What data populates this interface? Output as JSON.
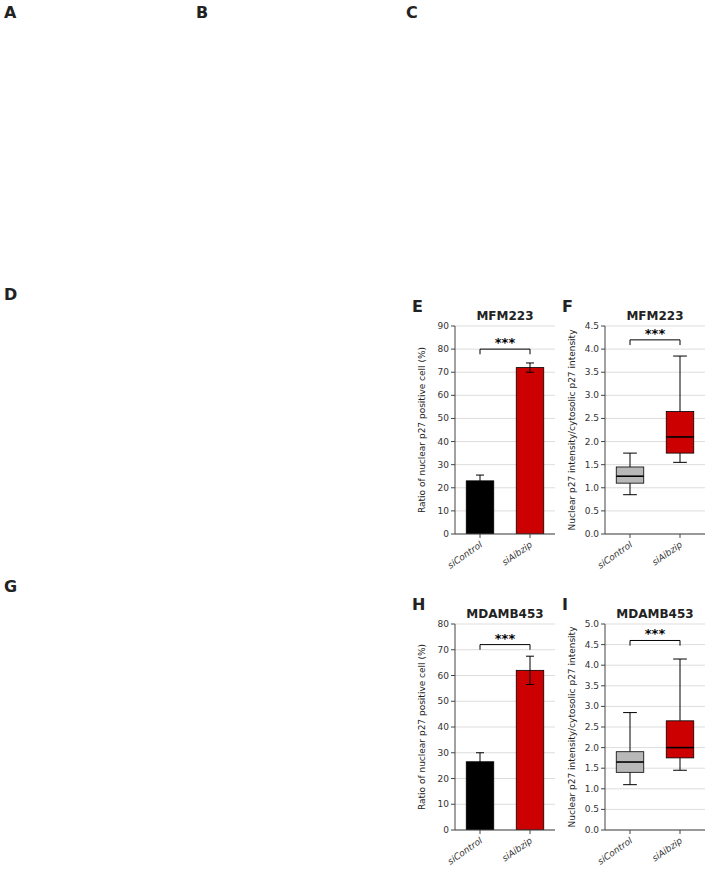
{
  "chart_data": [
    {
      "type": "bar",
      "title": "MFM223",
      "categories": [
        "siControl",
        "siAibzip"
      ],
      "values": [
        23.0,
        72.0
      ],
      "errors": [
        2.5,
        2.0
      ],
      "colors": [
        "#000000",
        "#cc0000"
      ],
      "y_label": "Ratio of nuclear p27 positive cell (%)",
      "ylim": [
        0,
        90
      ],
      "yticks": [
        0,
        10,
        20,
        30,
        40,
        50,
        60,
        70,
        80,
        90
      ],
      "grid": true,
      "annotations": [
        {
          "text": "***",
          "y": 80
        },
        {
          "text": "E"
        }
      ]
    },
    {
      "type": "box",
      "title": "MFM223",
      "categories": [
        "siControl",
        "siAibzip"
      ],
      "box": [
        {
          "low": 0.85,
          "q1": 1.1,
          "median": 1.25,
          "q3": 1.45,
          "high": 1.75
        },
        {
          "low": 1.55,
          "q1": 1.75,
          "median": 2.1,
          "q3": 2.65,
          "high": 3.85
        }
      ],
      "colors": [
        "#b8b8b8",
        "#cc0000"
      ],
      "y_label": "Nuclear p27 intensity/cytosolic p27 intensity",
      "ylim": [
        0,
        4.5
      ],
      "yticks": [
        {
          "value": 0,
          "label": "0.0"
        },
        0.5,
        {
          "value": 1,
          "label": "1.0"
        },
        1.5,
        {
          "value": 2,
          "label": "2.0"
        },
        2.5,
        {
          "value": 3,
          "label": "3.0"
        },
        3.5,
        {
          "value": 4,
          "label": "4.0"
        },
        4.5
      ],
      "grid": true,
      "annotations": [
        {
          "text": "***",
          "y": 4.2
        },
        {
          "text": "F"
        }
      ]
    },
    {
      "type": "bar",
      "title": "MDAMB453",
      "categories": [
        "siControl",
        "siAibzip"
      ],
      "values": [
        26.5,
        62.0
      ],
      "errors": [
        3.5,
        5.5
      ],
      "colors": [
        "#000000",
        "#cc0000"
      ],
      "y_label": "Ratio of nuclear p27 positive cell (%)",
      "ylim": [
        0,
        80
      ],
      "yticks": [
        0,
        10,
        20,
        30,
        40,
        50,
        60,
        70,
        80
      ],
      "grid": true,
      "annotations": [
        {
          "text": "***",
          "y": 72
        },
        {
          "text": "H"
        }
      ]
    },
    {
      "type": "box",
      "title": "MDAMB453",
      "categories": [
        "siControl",
        "siAibzip"
      ],
      "box": [
        {
          "low": 1.1,
          "q1": 1.4,
          "median": 1.65,
          "q3": 1.9,
          "high": 2.85
        },
        {
          "low": 1.45,
          "q1": 1.75,
          "median": 2.0,
          "q3": 2.65,
          "high": 4.15
        }
      ],
      "colors": [
        "#b8b8b8",
        "#cc0000"
      ],
      "y_label": "Nuclear p27 intensity/cytosolic p27 intensity",
      "ylim": [
        0,
        5.0
      ],
      "yticks": [
        {
          "value": 0,
          "label": "0.0"
        },
        0.5,
        {
          "value": 1,
          "label": "1.0"
        },
        1.5,
        {
          "value": 2,
          "label": "2.0"
        },
        2.5,
        {
          "value": 3,
          "label": "3.0"
        },
        3.5,
        {
          "value": 4,
          "label": "4.0"
        },
        4.5,
        {
          "value": 5,
          "label": "5.0"
        }
      ],
      "grid": true,
      "annotations": [
        {
          "text": "***",
          "y": 4.6
        },
        {
          "text": "I"
        }
      ]
    }
  ],
  "annotations": [
    "A",
    "B",
    "C",
    "D",
    "G"
  ]
}
